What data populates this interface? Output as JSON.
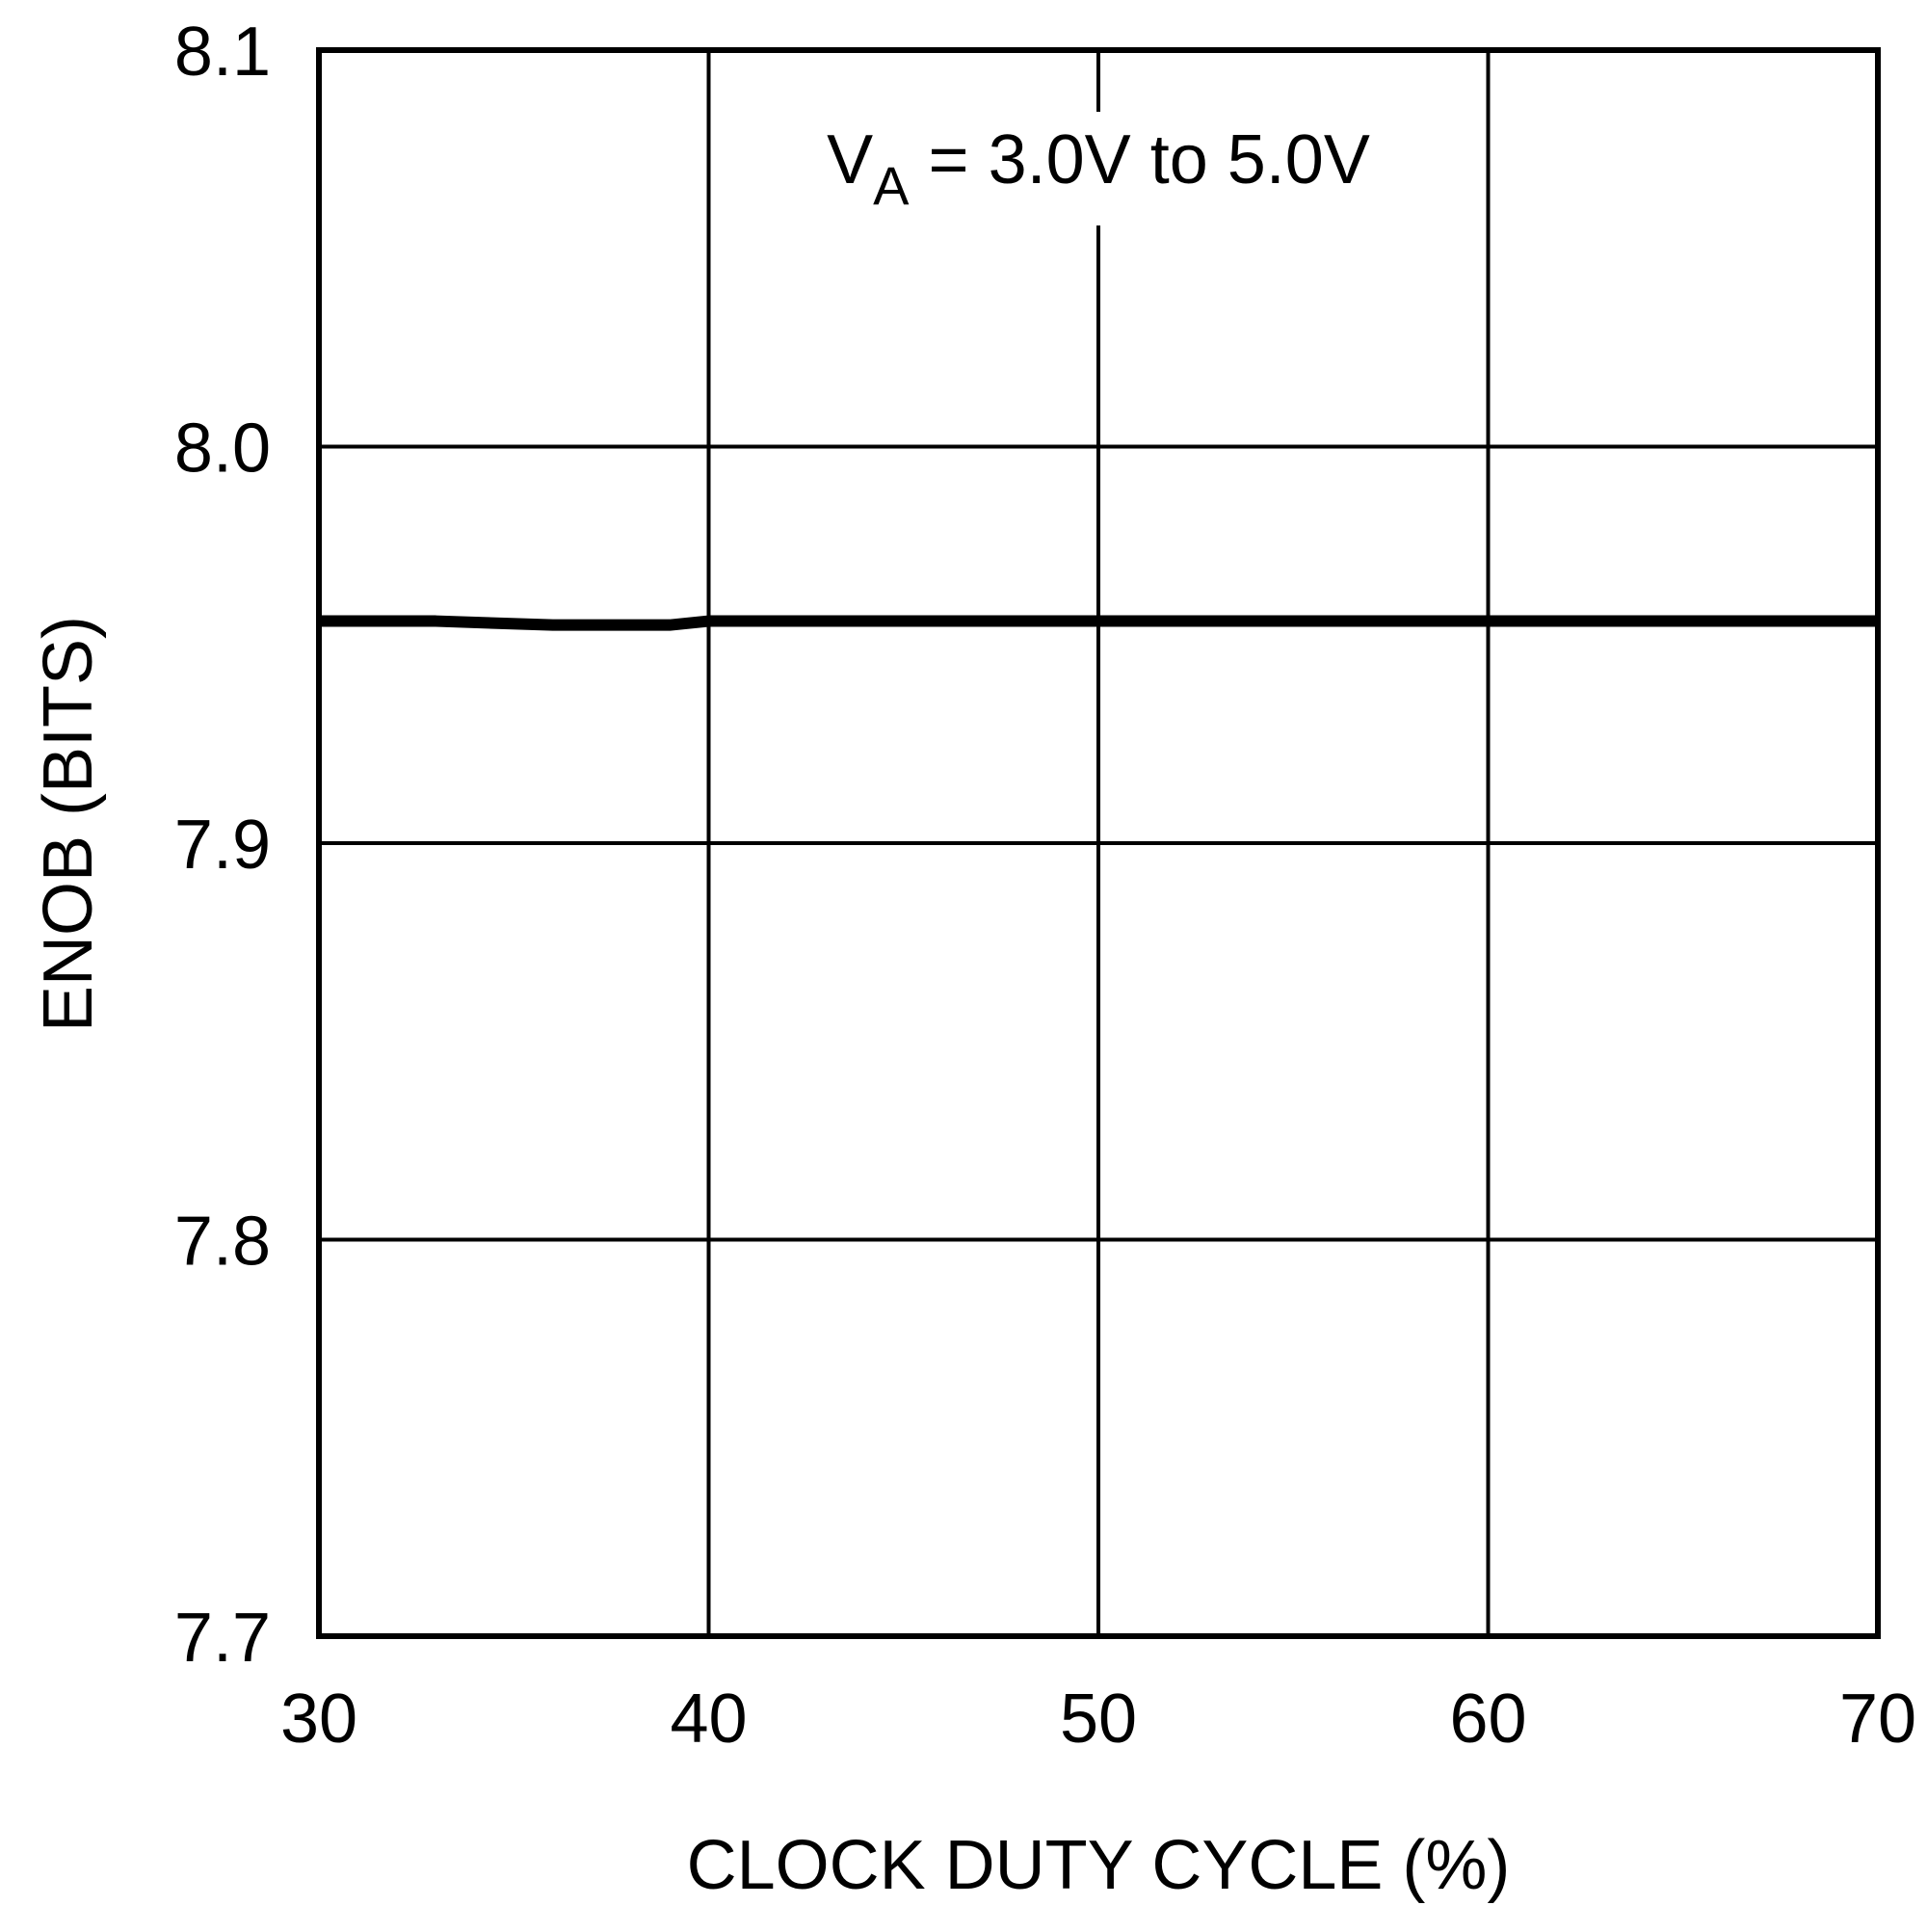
{
  "chart_data": {
    "type": "line",
    "title": "",
    "xlabel": "CLOCK DUTY CYCLE (%)",
    "ylabel": "ENOB (BITS)",
    "xlim": [
      30,
      70
    ],
    "ylim": [
      7.7,
      8.1
    ],
    "x_ticks": [
      30,
      40,
      50,
      60,
      70
    ],
    "x_tick_labels": [
      "30",
      "40",
      "50",
      "60",
      "70"
    ],
    "y_ticks": [
      7.7,
      7.8,
      7.9,
      8.0,
      8.1
    ],
    "y_tick_labels": [
      "7.7",
      "7.8",
      "7.9",
      "8.0",
      "8.1"
    ],
    "grid": true,
    "annotation": {
      "main": "V",
      "sub": "A",
      "rest": " = 3.0V to 5.0V"
    },
    "series": [
      {
        "color": "#000000",
        "x": [
          30,
          33,
          36,
          39,
          40,
          45,
          50,
          55,
          60,
          65,
          70
        ],
        "y": [
          7.956,
          7.956,
          7.955,
          7.955,
          7.956,
          7.956,
          7.956,
          7.956,
          7.956,
          7.956,
          7.956
        ]
      }
    ]
  }
}
